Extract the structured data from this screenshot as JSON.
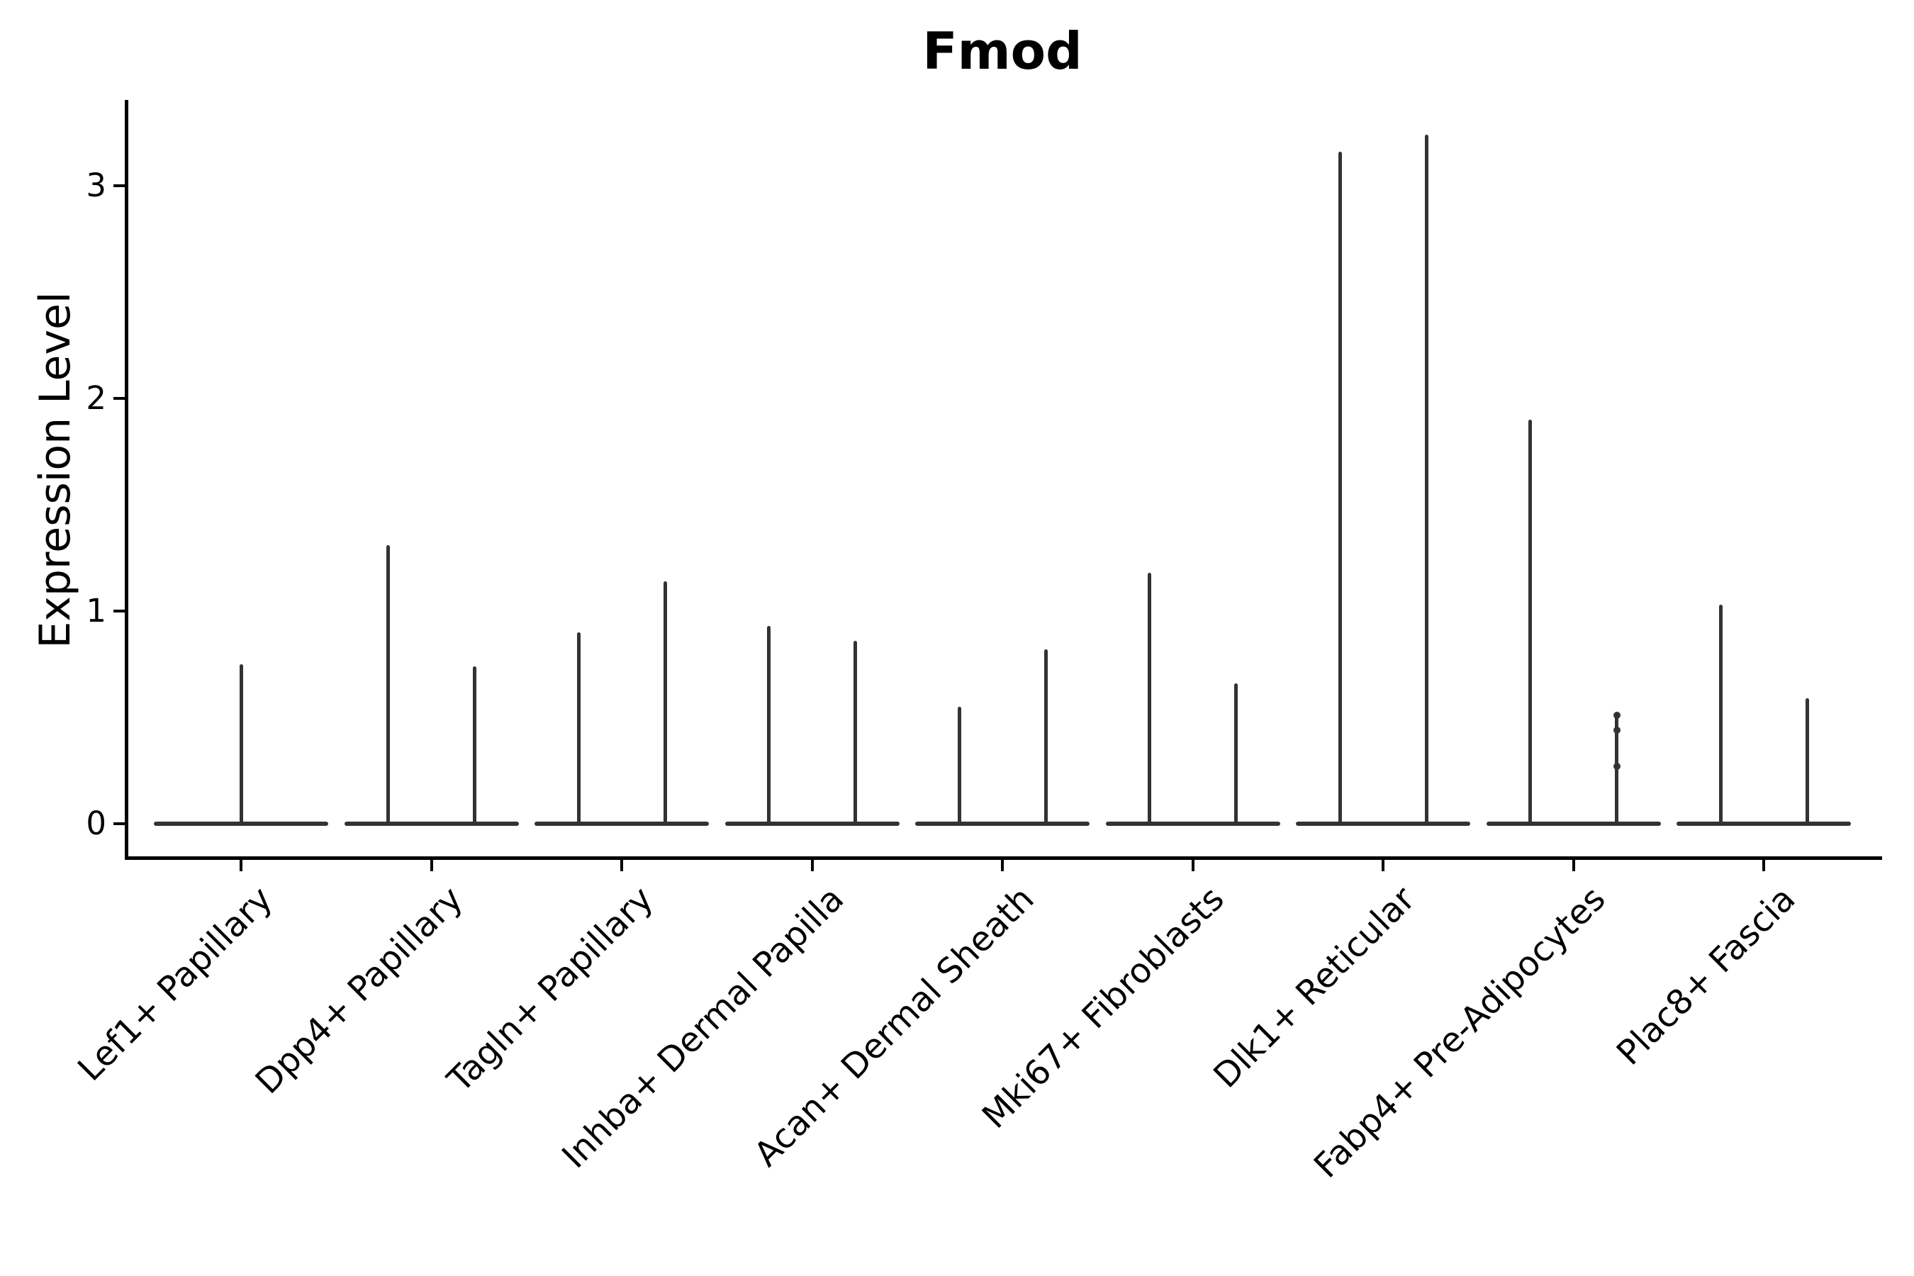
{
  "chart_data": {
    "type": "violin",
    "title": "Fmod",
    "ylabel": "Expression Level",
    "xlabel": "",
    "yticks": [
      0,
      1,
      2,
      3
    ],
    "ylim": [
      -0.15,
      3.4
    ],
    "grid": false,
    "legend": null,
    "violin_color": "#333333",
    "axis_color": "#000000",
    "note": "Thin violin plots: wide flat body at expression 0 with narrow spikes up to the max expressed value; most categories show two spikes (two violins per group), the first category a single centered spike.",
    "violins": [
      {
        "label": "Lef1+ Papillary",
        "spike_max": [
          0.75
        ]
      },
      {
        "label": "Dpp4+ Papillary",
        "spike_max": [
          1.31,
          0.74
        ]
      },
      {
        "label": "Tagln+ Papillary",
        "spike_max": [
          0.9,
          1.14
        ]
      },
      {
        "label": "Inhba+ Dermal Papilla",
        "spike_max": [
          0.93,
          0.86
        ]
      },
      {
        "label": "Acan+ Dermal Sheath",
        "spike_max": [
          0.55,
          0.82
        ]
      },
      {
        "label": "Mki67+ Fibroblasts",
        "spike_max": [
          1.18,
          0.66
        ]
      },
      {
        "label": "Dlk1+ Reticular",
        "spike_max": [
          3.16,
          3.24
        ]
      },
      {
        "label": "Fabp4+ Pre-Adipocytes",
        "spike_max": [
          1.9,
          0.51
        ],
        "dots": [
          0.51,
          0.44,
          0.27
        ]
      },
      {
        "label": "Plac8+ Fascia",
        "spike_max": [
          1.03,
          0.59
        ]
      }
    ]
  }
}
